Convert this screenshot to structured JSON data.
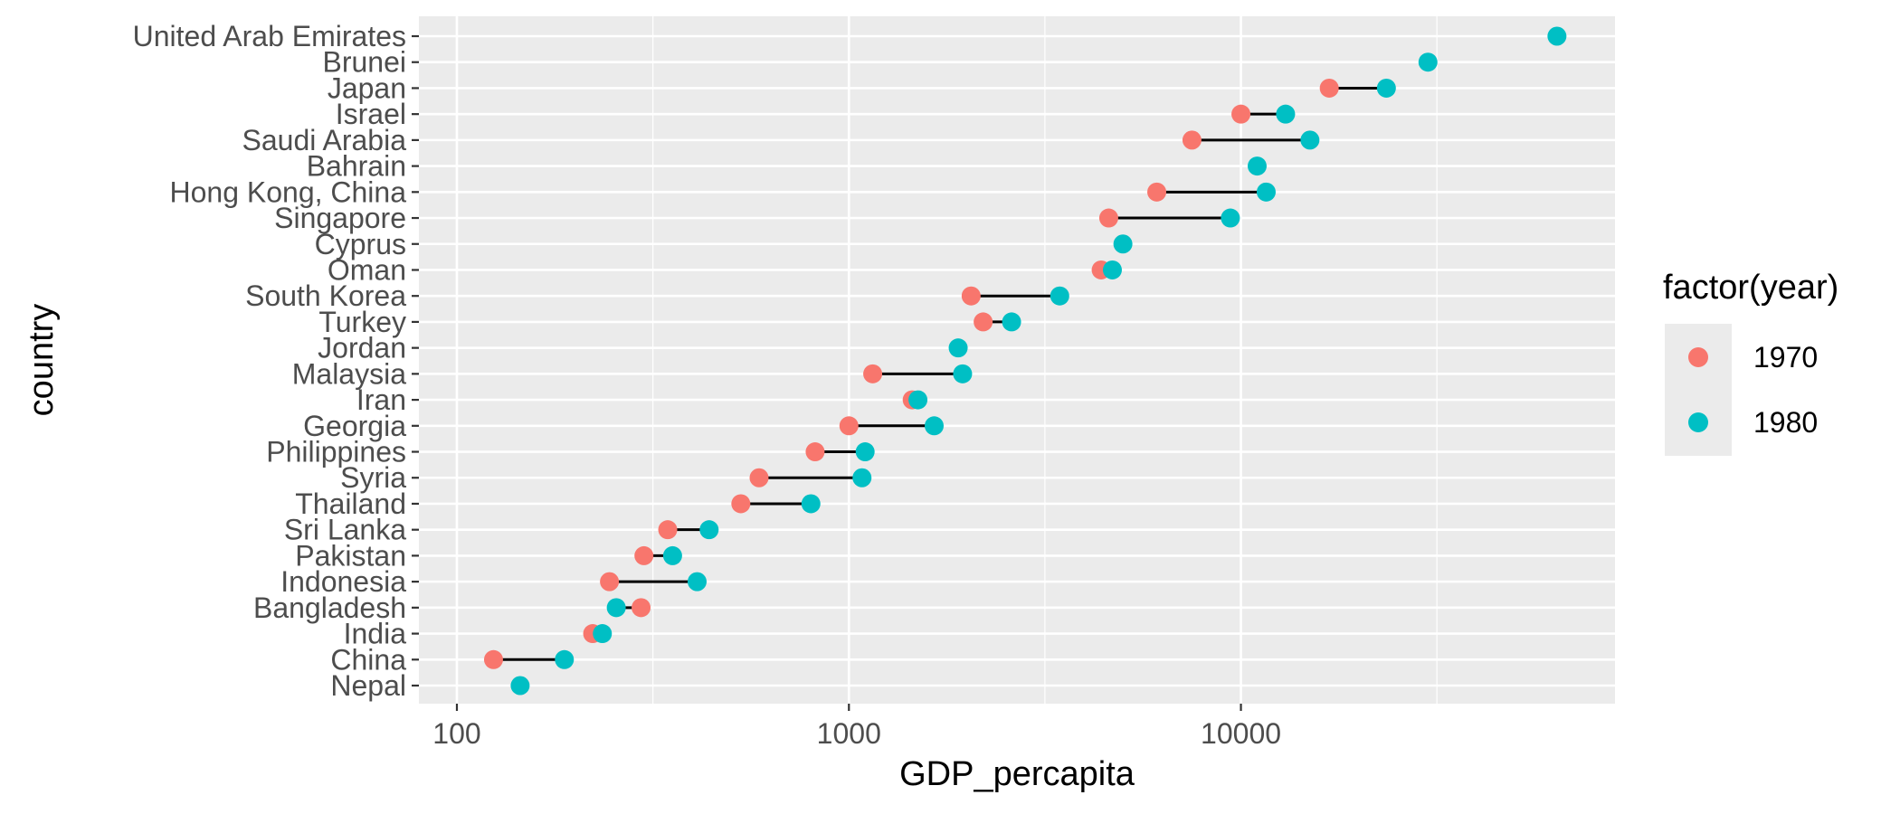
{
  "chart_data": {
    "type": "scatter",
    "subtype": "dumbbell",
    "xlabel": "GDP_percapita",
    "ylabel": "country",
    "x_scale": "log10",
    "xlim": [
      80,
      90000
    ],
    "x_ticks": [
      100,
      1000,
      10000
    ],
    "x_tick_labels": [
      "100",
      "1000",
      "10000"
    ],
    "grid": true,
    "legend": {
      "title": "factor(year)",
      "position": "right"
    },
    "colors": {
      "1970": "#F8766D",
      "1980": "#00BFC4",
      "panel": "#EBEBEB",
      "grid": "#FFFFFF",
      "segment": "#000000"
    },
    "countries": [
      "United Arab Emirates",
      "Brunei",
      "Japan",
      "Israel",
      "Saudi Arabia",
      "Bahrain",
      "Hong Kong, China",
      "Singapore",
      "Cyprus",
      "Oman",
      "South Korea",
      "Turkey",
      "Jordan",
      "Malaysia",
      "Iran",
      "Georgia",
      "Philippines",
      "Syria",
      "Thailand",
      "Sri Lanka",
      "Pakistan",
      "Indonesia",
      "Bangladesh",
      "India",
      "China",
      "Nepal"
    ],
    "series": [
      {
        "name": "1970",
        "values": [
          null,
          null,
          16800,
          10000,
          7500,
          null,
          6100,
          4600,
          null,
          4400,
          2050,
          2200,
          null,
          1150,
          1450,
          1000,
          820,
          590,
          530,
          345,
          300,
          245,
          295,
          222,
          124,
          null
        ]
      },
      {
        "name": "1980",
        "values": [
          64000,
          30000,
          23500,
          13000,
          15000,
          11000,
          11600,
          9400,
          5000,
          4700,
          3450,
          2600,
          1900,
          1950,
          1500,
          1650,
          1100,
          1080,
          800,
          440,
          355,
          410,
          255,
          235,
          188,
          145
        ]
      }
    ]
  }
}
